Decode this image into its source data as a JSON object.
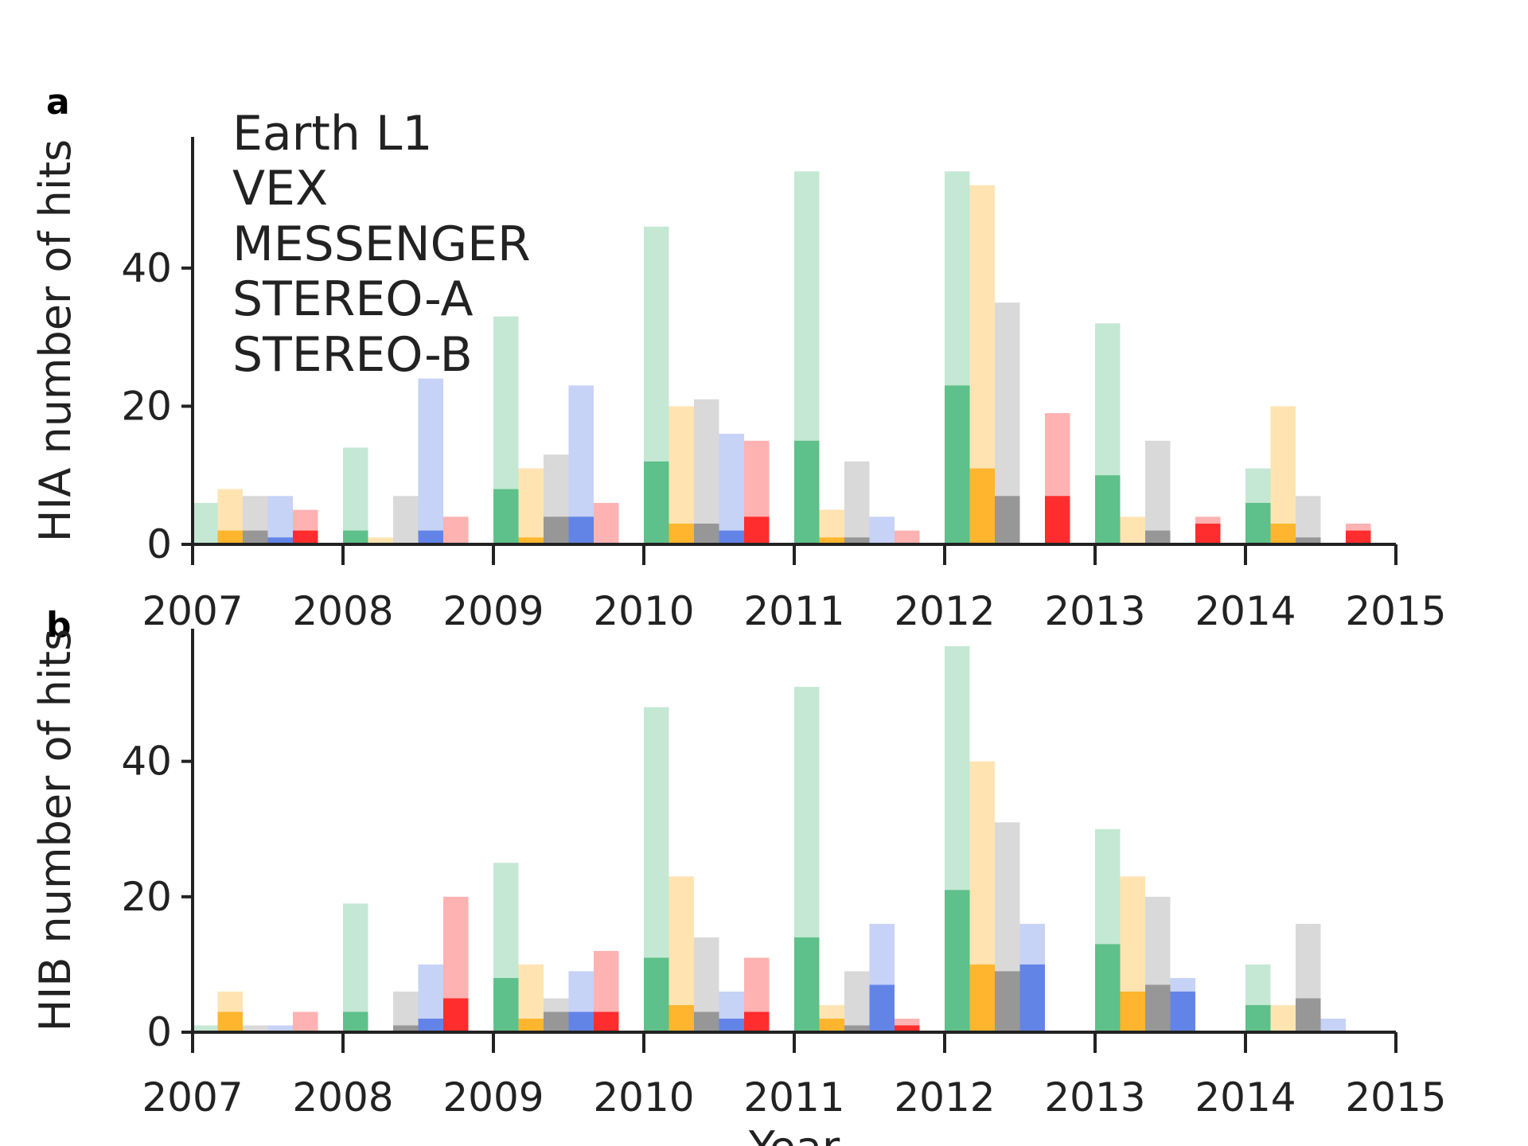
{
  "colors": {
    "Earth L1": "#3cb371",
    "VEX": "#ffa500",
    "MESSENGER": "#808080",
    "STEREO-A": "#ff0000",
    "STEREO-B": "#4169e1"
  },
  "legend": {
    "items": [
      {
        "label": "Earth L1",
        "color": "#3cb371"
      },
      {
        "label": "VEX",
        "color": "#ffa500"
      },
      {
        "label": "MESSENGER",
        "color": "#696969"
      },
      {
        "label": "STEREO-A",
        "color": "#ff0000"
      },
      {
        "label": "STEREO-B",
        "color": "#4169e1"
      }
    ]
  },
  "xlabel": "Year",
  "chart_data": [
    {
      "type": "bar",
      "panel": "a",
      "ylabel": "HIA number of hits",
      "ylim": [
        0,
        56
      ],
      "yticks": [
        0,
        20,
        40
      ],
      "xlim": [
        2007,
        2015
      ],
      "xticks": [
        "2007",
        "2008",
        "2009",
        "2010",
        "2011",
        "2012",
        "2013",
        "2014",
        "2015"
      ],
      "series": [
        {
          "name": "Earth L1",
          "total": [
            6,
            14,
            33,
            46,
            54,
            54,
            32,
            11
          ],
          "highlight": [
            0,
            2,
            8,
            12,
            15,
            23,
            10,
            6
          ]
        },
        {
          "name": "VEX",
          "total": [
            8,
            1,
            11,
            20,
            5,
            52,
            4,
            20
          ],
          "highlight": [
            2,
            0,
            1,
            3,
            1,
            11,
            0,
            3
          ]
        },
        {
          "name": "MESSENGER",
          "total": [
            7,
            7,
            13,
            21,
            12,
            35,
            15,
            7
          ],
          "highlight": [
            2,
            0,
            4,
            3,
            1,
            7,
            2,
            1
          ]
        },
        {
          "name": "STEREO-B",
          "total": [
            7,
            24,
            23,
            16,
            4,
            0,
            0,
            0
          ],
          "highlight": [
            1,
            2,
            4,
            2,
            0,
            0,
            0,
            0
          ]
        },
        {
          "name": "STEREO-A",
          "total": [
            5,
            4,
            6,
            15,
            2,
            19,
            4,
            3
          ],
          "highlight": [
            2,
            0,
            0,
            4,
            0,
            7,
            3,
            2
          ]
        }
      ]
    },
    {
      "type": "bar",
      "panel": "b",
      "ylabel": "HIB number of hits",
      "ylim": [
        0,
        57
      ],
      "yticks": [
        0,
        20,
        40
      ],
      "xlim": [
        2007,
        2015
      ],
      "xticks": [
        "2007",
        "2008",
        "2009",
        "2010",
        "2011",
        "2012",
        "2013",
        "2014",
        "2015"
      ],
      "series": [
        {
          "name": "Earth L1",
          "total": [
            1,
            19,
            25,
            48,
            51,
            57,
            30,
            10
          ],
          "highlight": [
            0,
            3,
            8,
            11,
            14,
            21,
            13,
            4
          ]
        },
        {
          "name": "VEX",
          "total": [
            6,
            0,
            10,
            23,
            4,
            40,
            23,
            4
          ],
          "highlight": [
            3,
            0,
            2,
            4,
            2,
            10,
            6,
            0
          ]
        },
        {
          "name": "MESSENGER",
          "total": [
            1,
            6,
            5,
            14,
            9,
            31,
            20,
            16
          ],
          "highlight": [
            0,
            1,
            3,
            3,
            1,
            9,
            7,
            5
          ]
        },
        {
          "name": "STEREO-B",
          "total": [
            1,
            10,
            9,
            6,
            16,
            16,
            8,
            2
          ],
          "highlight": [
            0,
            2,
            3,
            2,
            7,
            10,
            6,
            0
          ]
        },
        {
          "name": "STEREO-A",
          "total": [
            3,
            20,
            12,
            11,
            2,
            0,
            0,
            0
          ],
          "highlight": [
            0,
            5,
            3,
            3,
            1,
            0,
            0,
            0
          ]
        }
      ]
    }
  ]
}
